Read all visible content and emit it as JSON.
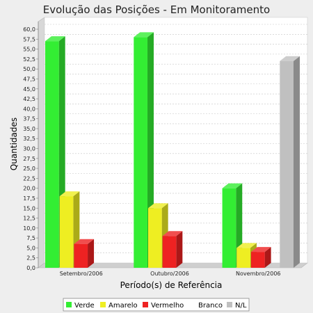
{
  "chart_data": {
    "type": "bar",
    "title": "Evolução das Posições - Em Monitoramento",
    "xlabel": "Período(s) de Referência",
    "ylabel": "Quantidades",
    "categories": [
      "Setembro/2006",
      "Outubro/2006",
      "Novembro/2006"
    ],
    "series": [
      {
        "name": "Verde",
        "color": "#33ee33",
        "values": [
          57,
          58,
          20
        ]
      },
      {
        "name": "Amarelo",
        "color": "#eeee22",
        "values": [
          18,
          15,
          5
        ]
      },
      {
        "name": "Vermelho",
        "color": "#ee2222",
        "values": [
          6,
          8,
          4
        ]
      },
      {
        "name": "Branco",
        "color": "#ffffff",
        "values": [
          0,
          0,
          0
        ]
      },
      {
        "name": "N/L",
        "color": "#c0c0c0",
        "values": [
          0,
          0,
          52
        ]
      }
    ],
    "ylim": [
      0,
      60
    ],
    "ytick_step": 2.5,
    "ytick_labels": [
      "0,0",
      "2,5",
      "5,0",
      "7,5",
      "10,0",
      "12,5",
      "15,0",
      "17,5",
      "20,0",
      "22,5",
      "25,0",
      "27,5",
      "30,0",
      "32,5",
      "35,0",
      "37,5",
      "40,0",
      "42,5",
      "45,0",
      "47,5",
      "50,0",
      "52,5",
      "55,0",
      "57,5",
      "60,0"
    ],
    "grid": true,
    "legend_position": "bottom",
    "style": "3d"
  }
}
